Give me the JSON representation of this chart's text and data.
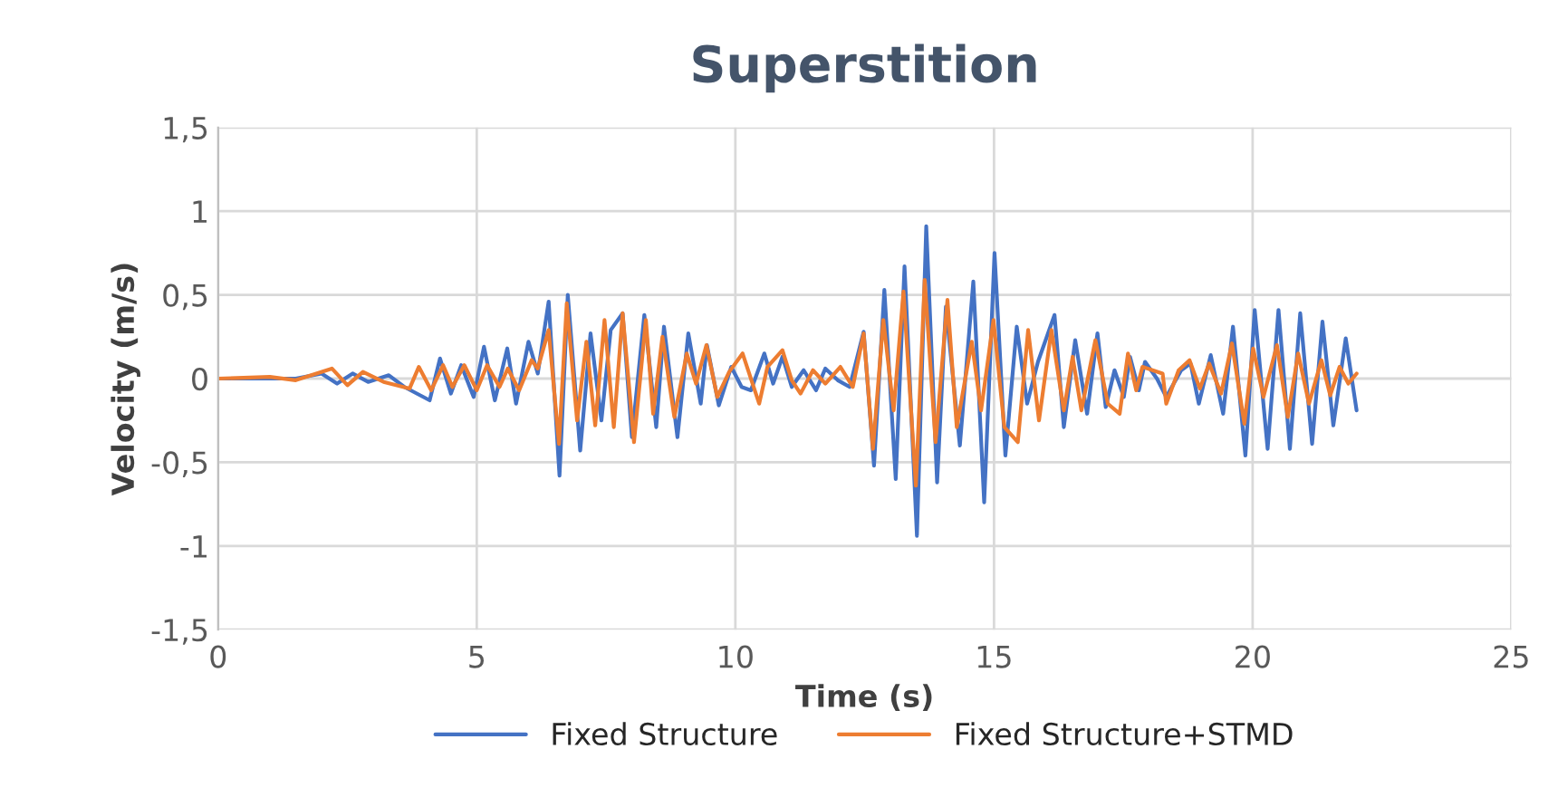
{
  "chart_data": {
    "type": "line",
    "title": "Superstition",
    "xlabel": "Time (s)",
    "ylabel": "Velocity (m/s)",
    "xlim": [
      0,
      25
    ],
    "xticks": [
      0,
      5,
      10,
      15,
      20,
      25
    ],
    "ylim": [
      -1.5,
      1.5
    ],
    "yticks": [
      {
        "value": -1.5,
        "label": "-1,5"
      },
      {
        "value": -1,
        "label": "-1"
      },
      {
        "value": -0.5,
        "label": "-0,5"
      },
      {
        "value": 0,
        "label": "0"
      },
      {
        "value": 0.5,
        "label": "0,5"
      },
      {
        "value": 1,
        "label": "1"
      },
      {
        "value": 1.5,
        "label": "1,5"
      }
    ],
    "grid": true,
    "legend": "bottom",
    "marker": "none",
    "line_style": "solid",
    "series": [
      {
        "name": "Fixed Structure",
        "color": "#4472c4",
        "x": [
          0,
          1.5,
          2,
          2.3,
          2.6,
          2.9,
          3.3,
          3.6,
          4.09,
          4.29,
          4.5,
          4.7,
          4.94,
          5.14,
          5.35,
          5.59,
          5.76,
          6.0,
          6.18,
          6.39,
          6.6,
          6.76,
          7.0,
          7.2,
          7.41,
          7.59,
          7.82,
          8.0,
          8.24,
          8.47,
          8.62,
          8.88,
          9.09,
          9.33,
          9.45,
          9.68,
          9.92,
          10.12,
          10.3,
          10.56,
          10.73,
          10.91,
          11.09,
          11.32,
          11.56,
          11.74,
          11.98,
          12.21,
          12.48,
          12.68,
          12.88,
          13.1,
          13.27,
          13.51,
          13.69,
          13.9,
          14.07,
          14.34,
          14.6,
          14.81,
          15.01,
          15.22,
          15.44,
          15.64,
          15.85,
          16.17,
          16.35,
          16.57,
          16.8,
          17.0,
          17.16,
          17.33,
          17.51,
          17.63,
          17.8,
          17.92,
          18.15,
          18.33,
          18.62,
          18.8,
          18.96,
          19.19,
          19.43,
          19.62,
          19.86,
          20.04,
          20.29,
          20.5,
          20.72,
          20.92,
          21.15,
          21.35,
          21.56,
          21.8,
          22.01
        ],
        "values": [
          0,
          0,
          0.03,
          -0.03,
          0.03,
          -0.02,
          0.02,
          -0.05,
          -0.13,
          0.12,
          -0.09,
          0.08,
          -0.11,
          0.19,
          -0.13,
          0.18,
          -0.15,
          0.22,
          0.03,
          0.46,
          -0.58,
          0.5,
          -0.43,
          0.27,
          -0.25,
          0.29,
          0.39,
          -0.35,
          0.38,
          -0.29,
          0.31,
          -0.35,
          0.27,
          -0.15,
          0.2,
          -0.16,
          0.07,
          -0.05,
          -0.07,
          0.15,
          -0.03,
          0.13,
          -0.05,
          0.05,
          -0.07,
          0.06,
          -0.01,
          -0.05,
          0.28,
          -0.52,
          0.53,
          -0.6,
          0.67,
          -0.94,
          0.91,
          -0.62,
          0.43,
          -0.4,
          0.58,
          -0.74,
          0.75,
          -0.46,
          0.31,
          -0.15,
          0.1,
          0.38,
          -0.29,
          0.23,
          -0.21,
          0.27,
          -0.17,
          0.05,
          -0.11,
          0.13,
          -0.07,
          0.1,
          0.0,
          -0.11,
          0.05,
          0.09,
          -0.15,
          0.14,
          -0.21,
          0.31,
          -0.46,
          0.41,
          -0.42,
          0.41,
          -0.42,
          0.39,
          -0.39,
          0.34,
          -0.28,
          0.24,
          -0.19
        ]
      },
      {
        "name": "Fixed Structure+STMD",
        "color": "#ed7d31",
        "x": [
          0,
          1,
          1.5,
          2.2,
          2.5,
          2.8,
          3.2,
          3.7,
          3.88,
          4.12,
          4.35,
          4.53,
          4.76,
          5.0,
          5.2,
          5.44,
          5.6,
          5.82,
          6.06,
          6.18,
          6.39,
          6.59,
          6.74,
          6.94,
          7.12,
          7.29,
          7.47,
          7.65,
          7.82,
          8.04,
          8.27,
          8.41,
          8.59,
          8.82,
          9.06,
          9.24,
          9.44,
          9.65,
          9.88,
          10.14,
          10.46,
          10.62,
          10.91,
          11.09,
          11.26,
          11.5,
          11.74,
          12.03,
          12.27,
          12.48,
          12.66,
          12.86,
          13.06,
          13.25,
          13.49,
          13.66,
          13.87,
          14.1,
          14.28,
          14.57,
          14.75,
          14.99,
          15.2,
          15.46,
          15.66,
          15.87,
          16.11,
          16.35,
          16.52,
          16.69,
          16.96,
          17.2,
          17.43,
          17.59,
          17.75,
          17.87,
          18.26,
          18.33,
          18.57,
          18.78,
          18.98,
          19.16,
          19.39,
          19.6,
          19.84,
          20.01,
          20.21,
          20.47,
          20.68,
          20.88,
          21.09,
          21.33,
          21.5,
          21.68,
          21.85,
          22.01
        ],
        "values": [
          0,
          0.01,
          -0.01,
          0.06,
          -0.04,
          0.04,
          -0.02,
          -0.06,
          0.07,
          -0.07,
          0.08,
          -0.05,
          0.08,
          -0.07,
          0.08,
          -0.05,
          0.06,
          -0.07,
          0.11,
          0.06,
          0.29,
          -0.39,
          0.45,
          -0.25,
          0.22,
          -0.28,
          0.35,
          -0.29,
          0.39,
          -0.38,
          0.35,
          -0.21,
          0.25,
          -0.23,
          0.15,
          -0.03,
          0.2,
          -0.11,
          0.04,
          0.15,
          -0.15,
          0.07,
          0.17,
          -0.01,
          -0.09,
          0.05,
          -0.03,
          0.07,
          -0.05,
          0.27,
          -0.42,
          0.35,
          -0.19,
          0.52,
          -0.64,
          0.59,
          -0.38,
          0.47,
          -0.29,
          0.22,
          -0.19,
          0.35,
          -0.29,
          -0.38,
          0.29,
          -0.25,
          0.29,
          -0.19,
          0.13,
          -0.19,
          0.23,
          -0.15,
          -0.21,
          0.15,
          -0.07,
          0.07,
          0.03,
          -0.15,
          0.05,
          0.11,
          -0.06,
          0.09,
          -0.09,
          0.21,
          -0.27,
          0.18,
          -0.11,
          0.2,
          -0.23,
          0.15,
          -0.15,
          0.11,
          -0.1,
          0.07,
          -0.03,
          0.03
        ]
      }
    ]
  }
}
